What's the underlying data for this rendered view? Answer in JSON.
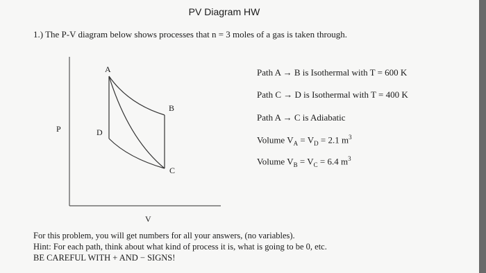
{
  "header": {
    "title": "PV Diagram HW"
  },
  "question": "1.) The P-V diagram below shows processes that n = 3 moles of a gas is taken through.",
  "diagram": {
    "points": [
      "A",
      "B",
      "C",
      "D"
    ],
    "y_axis_label": "P",
    "x_axis_label": "V"
  },
  "conditions": [
    "Path A → B is Isothermal with T = 600 K",
    "Path C → D is Isothermal with T = 400 K",
    "Path A → C is Adiabatic",
    {
      "parts": [
        "Volume V",
        "A",
        " = V",
        "D",
        " = 2.1 m",
        "3"
      ]
    },
    {
      "parts": [
        "Volume V",
        "B",
        " = V",
        "C",
        " = 6.4 m",
        "3"
      ]
    }
  ],
  "notes": [
    "For this problem, you will get numbers for all your answers, (no variables).",
    "Hint: For each path, think about what kind of process it is, what is going to be 0, etc.",
    "BE CAREFUL WITH + AND − SIGNS!"
  ]
}
